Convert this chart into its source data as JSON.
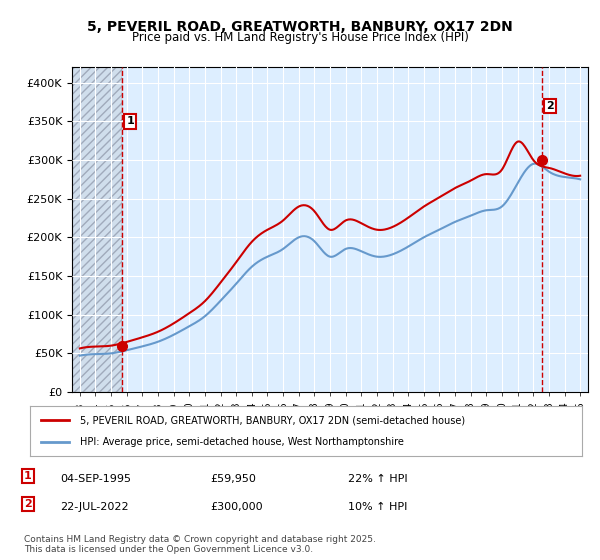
{
  "title": "5, PEVERIL ROAD, GREATWORTH, BANBURY, OX17 2DN",
  "subtitle": "Price paid vs. HM Land Registry's House Price Index (HPI)",
  "background_color": "#ffffff",
  "plot_bg_color": "#ddeeff",
  "grid_color": "#ffffff",
  "hatch_color": "#c0c8d8",
  "sale1_date": "04-SEP-1995",
  "sale1_price": 59950,
  "sale1_hpi": "22% ↑ HPI",
  "sale2_date": "22-JUL-2022",
  "sale2_price": 300000,
  "sale2_hpi": "10% ↑ HPI",
  "legend_line1": "5, PEVERIL ROAD, GREATWORTH, BANBURY, OX17 2DN (semi-detached house)",
  "legend_line2": "HPI: Average price, semi-detached house, West Northamptonshire",
  "footer": "Contains HM Land Registry data © Crown copyright and database right 2025.\nThis data is licensed under the Open Government Licence v3.0.",
  "red_color": "#cc0000",
  "blue_color": "#6699cc",
  "ylim": [
    0,
    420000
  ],
  "yticks": [
    0,
    50000,
    100000,
    150000,
    200000,
    250000,
    300000,
    350000,
    400000
  ],
  "ytick_labels": [
    "£0",
    "£50K",
    "£100K",
    "£150K",
    "£200K",
    "£250K",
    "£300K",
    "£350K",
    "£400K"
  ],
  "xlim_start": 1992.5,
  "xlim_end": 2025.5,
  "sale1_x": 1995.67,
  "sale2_x": 2022.54
}
